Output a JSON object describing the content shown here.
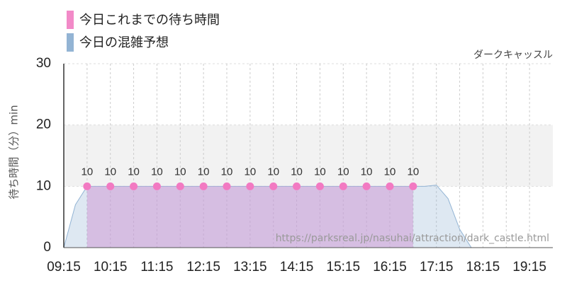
{
  "chart_data": {
    "type": "area",
    "title": "ダークキャッスル",
    "y_label": "待ち時間（分）min",
    "watermark": "https://parksreal.jp/nasuhai/attraction/dark_castle.html",
    "xlim": [
      "09:15",
      "19:45"
    ],
    "xticks": [
      "09:15",
      "10:15",
      "11:15",
      "12:15",
      "13:15",
      "14:15",
      "15:15",
      "16:15",
      "17:15",
      "18:15",
      "19:15"
    ],
    "ylim": [
      0,
      30
    ],
    "yticks": [
      0,
      10,
      20,
      30
    ],
    "series": [
      {
        "name": "今日これまでの待ち時間",
        "color": "#f28ac8",
        "x": [
          "09:45",
          "10:15",
          "10:45",
          "11:15",
          "11:45",
          "12:15",
          "12:45",
          "13:15",
          "13:45",
          "14:15",
          "14:45",
          "15:15",
          "15:45",
          "16:15",
          "16:45"
        ],
        "values": [
          10,
          10,
          10,
          10,
          10,
          10,
          10,
          10,
          10,
          10,
          10,
          10,
          10,
          10,
          10
        ]
      },
      {
        "name": "今日の混雑予想",
        "color": "#93b4d4",
        "x": [
          "09:15",
          "09:30",
          "09:45",
          "16:45",
          "17:00",
          "17:15",
          "17:30",
          "17:45",
          "18:00",
          "18:15",
          "19:45"
        ],
        "values": [
          0,
          7,
          10,
          10,
          10,
          10.2,
          8,
          3,
          0,
          0,
          0
        ]
      }
    ]
  }
}
